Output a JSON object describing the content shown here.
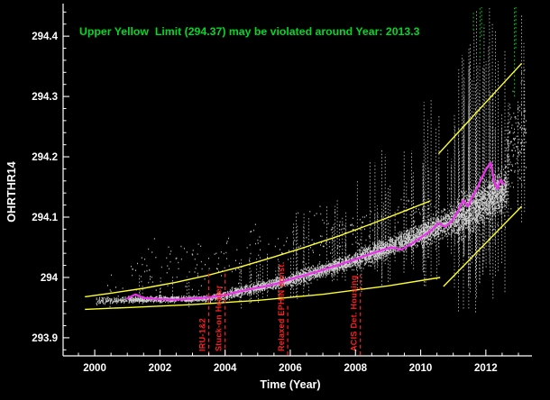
{
  "figure": {
    "background": "#000000"
  },
  "chart_data": {
    "type": "scatter",
    "title": "Upper Yellow  Limit (294.37) may be violated around Year: 2013.3",
    "xlabel": "Time (Year)",
    "ylabel": "OHRTHR14",
    "xlim": [
      1999.03,
      2013.36
    ],
    "ylim": [
      293.87,
      294.448
    ],
    "x_ticks": [
      {
        "v": 2000,
        "label": "2000"
      },
      {
        "v": 2002,
        "label": "2002"
      },
      {
        "v": 2004,
        "label": "2004"
      },
      {
        "v": 2006,
        "label": "2006"
      },
      {
        "v": 2008,
        "label": "2008"
      },
      {
        "v": 2010,
        "label": "2010"
      },
      {
        "v": 2012,
        "label": "2012"
      }
    ],
    "x_minor_step": 0.5,
    "y_ticks": [
      {
        "v": 293.9,
        "label": "293.9"
      },
      {
        "v": 294.0,
        "label": "294"
      },
      {
        "v": 294.1,
        "label": "294.1"
      },
      {
        "v": 294.2,
        "label": "294.2"
      },
      {
        "v": 294.3,
        "label": "294.3"
      },
      {
        "v": 294.4,
        "label": "294.4"
      }
    ],
    "y_minor_step": 0.02,
    "upper_yellow_limit": 294.37,
    "predicted_violation_year": 2013.3,
    "colors": {
      "title": "#00d926",
      "scatter": "#e8e8e8",
      "trend": "#ee30ee",
      "envelope": "#ffff2e",
      "events": "#ff2020",
      "outliers": "#00c820",
      "axis": "#ffffff"
    },
    "trend": [
      [
        2001.0,
        293.965
      ],
      [
        2001.25,
        293.972
      ],
      [
        2001.5,
        293.966
      ],
      [
        2002.0,
        293.964
      ],
      [
        2002.5,
        293.963
      ],
      [
        2003.0,
        293.965
      ],
      [
        2003.5,
        293.967
      ],
      [
        2004.0,
        293.971
      ],
      [
        2004.4,
        293.976
      ],
      [
        2004.8,
        293.981
      ],
      [
        2005.2,
        293.985
      ],
      [
        2005.6,
        293.99
      ],
      [
        2006.0,
        293.997
      ],
      [
        2006.4,
        294.003
      ],
      [
        2006.8,
        294.009
      ],
      [
        2007.2,
        294.016
      ],
      [
        2007.6,
        294.023
      ],
      [
        2008.0,
        294.03
      ],
      [
        2008.4,
        294.038
      ],
      [
        2008.8,
        294.045
      ],
      [
        2009.1,
        294.05
      ],
      [
        2009.4,
        294.046
      ],
      [
        2009.7,
        294.055
      ],
      [
        2010.0,
        294.066
      ],
      [
        2010.3,
        294.077
      ],
      [
        2010.55,
        294.09
      ],
      [
        2010.75,
        294.084
      ],
      [
        2010.95,
        294.093
      ],
      [
        2011.15,
        294.11
      ],
      [
        2011.3,
        294.128
      ],
      [
        2011.45,
        294.118
      ],
      [
        2011.6,
        294.135
      ],
      [
        2011.75,
        294.15
      ],
      [
        2011.9,
        294.168
      ],
      [
        2012.05,
        294.183
      ],
      [
        2012.15,
        294.19
      ],
      [
        2012.25,
        294.16
      ],
      [
        2012.35,
        294.147
      ],
      [
        2012.45,
        294.162
      ],
      [
        2012.55,
        294.155
      ]
    ],
    "envelope": {
      "upper_curve": [
        [
          1999.7,
          293.968
        ],
        [
          2000.5,
          293.974
        ],
        [
          2001.5,
          293.982
        ],
        [
          2002.5,
          293.992
        ],
        [
          2003.5,
          294.004
        ],
        [
          2004.5,
          294.018
        ],
        [
          2005.5,
          294.034
        ],
        [
          2006.5,
          294.051
        ],
        [
          2007.5,
          294.069
        ],
        [
          2008.5,
          294.089
        ],
        [
          2009.5,
          294.11
        ],
        [
          2010.3,
          294.127
        ]
      ],
      "lower_curve": [
        [
          1999.7,
          293.947
        ],
        [
          2001.0,
          293.95
        ],
        [
          2003.0,
          293.955
        ],
        [
          2005.0,
          293.962
        ],
        [
          2007.0,
          293.972
        ],
        [
          2009.0,
          293.986
        ],
        [
          2010.6,
          294.0
        ]
      ],
      "upper_proj": [
        [
          2010.55,
          294.205
        ],
        [
          2013.1,
          294.355
        ]
      ],
      "lower_proj": [
        [
          2010.7,
          293.985
        ],
        [
          2013.1,
          294.118
        ]
      ]
    },
    "events": [
      {
        "year": 2003.5,
        "label": "IRU-1&2",
        "top": 294.012
      },
      {
        "year": 2004.0,
        "label": "Stuck-on Heater",
        "top": 294.012
      },
      {
        "year": 2005.92,
        "label": "Relaxed EPHIN const.",
        "top": 293.955
      },
      {
        "year": 2008.15,
        "label": "ACIS Det. Housing",
        "top": 294.005
      }
    ],
    "green_outlier_columns": [
      {
        "year": 2011.62,
        "from": 294.41,
        "to": 294.44
      },
      {
        "year": 2011.82,
        "from": 294.365,
        "to": 294.448
      },
      {
        "year": 2011.87,
        "from": 294.4,
        "to": 294.448
      },
      {
        "year": 2012.88,
        "from": 294.3,
        "to": 294.448
      },
      {
        "year": 2012.92,
        "from": 294.38,
        "to": 294.448
      }
    ],
    "scatter_clusters": [
      {
        "x0": 2000.05,
        "x1": 2001.05,
        "c0": 293.962,
        "c1": 293.964,
        "s": 0.008,
        "n": 130
      },
      {
        "x0": 2001.05,
        "x1": 2003.6,
        "c0": 293.964,
        "c1": 293.966,
        "s": 0.007,
        "n": 650
      },
      {
        "x0": 2003.6,
        "x1": 2004.15,
        "c0": 293.968,
        "c1": 293.972,
        "s": 0.01,
        "n": 180
      },
      {
        "x0": 2004.15,
        "x1": 2006.0,
        "c0": 293.974,
        "c1": 293.996,
        "s": 0.012,
        "n": 750
      },
      {
        "x0": 2006.0,
        "x1": 2008.0,
        "c0": 293.996,
        "c1": 294.03,
        "s": 0.016,
        "n": 950
      },
      {
        "x0": 2008.0,
        "x1": 2010.0,
        "c0": 294.03,
        "c1": 294.072,
        "s": 0.022,
        "n": 1150
      },
      {
        "x0": 2010.0,
        "x1": 2011.1,
        "c0": 294.072,
        "c1": 294.1,
        "s": 0.03,
        "n": 700
      },
      {
        "x0": 2011.1,
        "x1": 2012.65,
        "c0": 294.1,
        "c1": 294.15,
        "s": 0.05,
        "n": 1300
      },
      {
        "x0": 2000.2,
        "x1": 2012.6,
        "c0": 293.99,
        "c1": 294.12,
        "s": 0.07,
        "n": 350
      },
      {
        "x0": 2012.6,
        "x1": 2013.25,
        "c0": 294.2,
        "c1": 294.25,
        "s": 0.12,
        "n": 140
      }
    ],
    "streak_clusters": [
      {
        "x0": 2001.1,
        "x1": 2003.6,
        "c0": 293.965,
        "c1": 293.966,
        "up": 0.045,
        "down": 0.018,
        "count": 10
      },
      {
        "x0": 2004.2,
        "x1": 2006.0,
        "c0": 293.975,
        "c1": 293.995,
        "up": 0.07,
        "down": 0.03,
        "count": 12
      },
      {
        "x0": 2006.0,
        "x1": 2008.0,
        "c0": 293.996,
        "c1": 294.03,
        "up": 0.11,
        "down": 0.04,
        "count": 16
      },
      {
        "x0": 2008.0,
        "x1": 2010.0,
        "c0": 294.03,
        "c1": 294.07,
        "up": 0.17,
        "down": 0.06,
        "count": 22
      },
      {
        "x0": 2010.0,
        "x1": 2011.0,
        "c0": 294.07,
        "c1": 294.1,
        "up": 0.22,
        "down": 0.09,
        "count": 16
      },
      {
        "x0": 2011.0,
        "x1": 2012.6,
        "c0": 294.1,
        "c1": 294.15,
        "up": 0.32,
        "down": 0.18,
        "count": 46
      },
      {
        "x0": 2012.6,
        "x1": 2013.2,
        "c0": 294.15,
        "c1": 294.2,
        "up": 0.26,
        "down": 0.1,
        "count": 6
      }
    ],
    "seed": 20130313
  }
}
